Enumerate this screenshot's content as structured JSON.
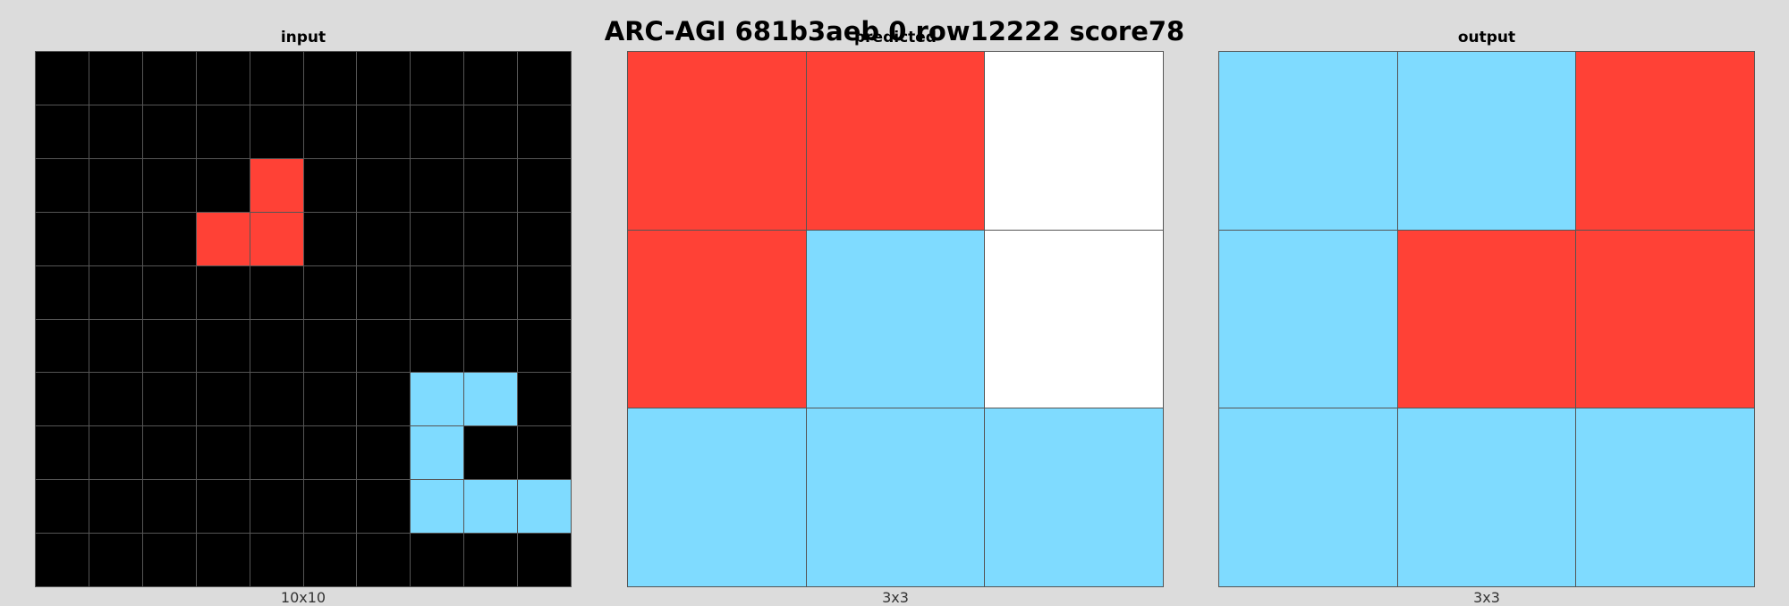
{
  "title": "ARC-AGI 681b3aeb 0 row12222 score78",
  "palette": {
    "0": "#000000",
    "1": "#0074D9",
    "2": "#FF4136",
    "3": "#2ECC40",
    "4": "#FFDC00",
    "5": "#AAAAAA",
    "6": "#F012BE",
    "7": "#FF851B",
    "8": "#7FDBFF",
    "9": "#870C25",
    "w": "#FFFFFF"
  },
  "panels": [
    {
      "title": "input",
      "dims": "10x10",
      "grid": [
        [
          "0",
          "0",
          "0",
          "0",
          "0",
          "0",
          "0",
          "0",
          "0",
          "0"
        ],
        [
          "0",
          "0",
          "0",
          "0",
          "0",
          "0",
          "0",
          "0",
          "0",
          "0"
        ],
        [
          "0",
          "0",
          "0",
          "0",
          "2",
          "0",
          "0",
          "0",
          "0",
          "0"
        ],
        [
          "0",
          "0",
          "0",
          "2",
          "2",
          "0",
          "0",
          "0",
          "0",
          "0"
        ],
        [
          "0",
          "0",
          "0",
          "0",
          "0",
          "0",
          "0",
          "0",
          "0",
          "0"
        ],
        [
          "0",
          "0",
          "0",
          "0",
          "0",
          "0",
          "0",
          "0",
          "0",
          "0"
        ],
        [
          "0",
          "0",
          "0",
          "0",
          "0",
          "0",
          "0",
          "8",
          "8",
          "0"
        ],
        [
          "0",
          "0",
          "0",
          "0",
          "0",
          "0",
          "0",
          "8",
          "0",
          "0"
        ],
        [
          "0",
          "0",
          "0",
          "0",
          "0",
          "0",
          "0",
          "8",
          "8",
          "8"
        ],
        [
          "0",
          "0",
          "0",
          "0",
          "0",
          "0",
          "0",
          "0",
          "0",
          "0"
        ]
      ]
    },
    {
      "title": "predicted",
      "dims": "3x3",
      "grid": [
        [
          "2",
          "2",
          "w"
        ],
        [
          "2",
          "8",
          "w"
        ],
        [
          "8",
          "8",
          "8"
        ]
      ]
    },
    {
      "title": "output",
      "dims": "3x3",
      "grid": [
        [
          "8",
          "8",
          "2"
        ],
        [
          "8",
          "2",
          "2"
        ],
        [
          "8",
          "8",
          "8"
        ]
      ]
    }
  ]
}
